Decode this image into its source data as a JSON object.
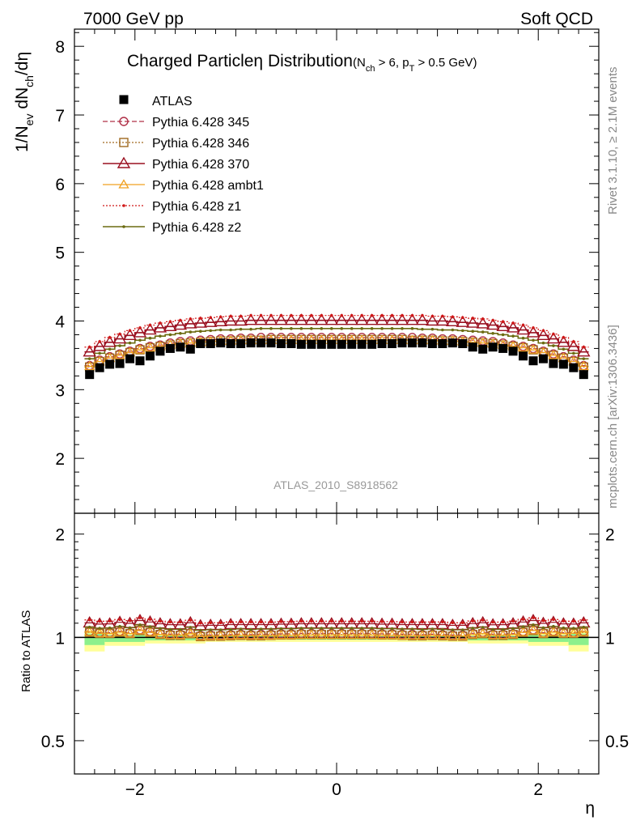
{
  "header": {
    "left": "7000 GeV pp",
    "right": "Soft QCD"
  },
  "side_labels": {
    "right_top": "Rivet 3.1.10, ≥ 2.1M events",
    "right_bottom": "mcplots.cern.ch [arXiv:1306.3436]"
  },
  "chart_data": {
    "type": "scatter",
    "title": "Charged Particle",
    "title_symbol": "η",
    "title_rest": " Distribution",
    "title_cut": "(N",
    "title_cut_sub1": "ch",
    "title_cut_mid": " > 6, p",
    "title_cut_sub2": "T",
    "title_cut_end": " > 0.5 GeV)",
    "watermark": "ATLAS_2010_S8918562",
    "xlabel": "η",
    "ylabel_main": "1/N",
    "ylabel_sub1": "ev",
    "ylabel_mid": " dN",
    "ylabel_sub2": "ch",
    "ylabel_end": "/dη",
    "ratio_ylabel": "Ratio to ATLAS",
    "xlim": [
      -2.6,
      2.6
    ],
    "ylim": [
      1.2,
      8.25
    ],
    "ratio_ylim": [
      0.4,
      2.3
    ],
    "xticks": [
      -2,
      0,
      2
    ],
    "xtick_labels": [
      "−2",
      "0",
      "2"
    ],
    "yticks": [
      2,
      3,
      4,
      5,
      6,
      7,
      8
    ],
    "ytick_labels": [
      "2",
      "3",
      "4",
      "5",
      "6",
      "7",
      "8"
    ],
    "ratio_yticks": [
      0.5,
      1,
      2
    ],
    "ratio_ytick_labels": [
      "0.5",
      "1",
      "2"
    ],
    "legend_placement": "top-left",
    "x": [
      -2.45,
      -2.35,
      -2.25,
      -2.15,
      -2.05,
      -1.95,
      -1.85,
      -1.75,
      -1.65,
      -1.55,
      -1.45,
      -1.35,
      -1.25,
      -1.15,
      -1.05,
      -0.95,
      -0.85,
      -0.75,
      -0.65,
      -0.55,
      -0.45,
      -0.35,
      -0.25,
      -0.15,
      -0.05,
      0.05,
      0.15,
      0.25,
      0.35,
      0.45,
      0.55,
      0.65,
      0.75,
      0.85,
      0.95,
      1.05,
      1.15,
      1.25,
      1.35,
      1.45,
      1.55,
      1.65,
      1.75,
      1.85,
      1.95,
      2.05,
      2.15,
      2.25,
      2.35,
      2.45
    ],
    "atlas": {
      "name": "ATLAS",
      "values": [
        3.22,
        3.32,
        3.37,
        3.38,
        3.45,
        3.42,
        3.49,
        3.56,
        3.6,
        3.62,
        3.59,
        3.67,
        3.67,
        3.68,
        3.67,
        3.67,
        3.68,
        3.68,
        3.68,
        3.67,
        3.67,
        3.66,
        3.66,
        3.66,
        3.66,
        3.66,
        3.66,
        3.66,
        3.66,
        3.67,
        3.67,
        3.68,
        3.68,
        3.68,
        3.67,
        3.67,
        3.68,
        3.67,
        3.62,
        3.59,
        3.62,
        3.6,
        3.56,
        3.49,
        3.42,
        3.45,
        3.38,
        3.37,
        3.32,
        3.22
      ]
    },
    "series": [
      {
        "name": "Pythia 6.428 345",
        "color": "#b03048",
        "values": [
          3.35,
          3.43,
          3.48,
          3.52,
          3.56,
          3.6,
          3.63,
          3.65,
          3.68,
          3.7,
          3.71,
          3.72,
          3.73,
          3.74,
          3.74,
          3.75,
          3.75,
          3.76,
          3.76,
          3.76,
          3.76,
          3.76,
          3.76,
          3.76,
          3.76,
          3.76,
          3.76,
          3.76,
          3.76,
          3.76,
          3.76,
          3.76,
          3.76,
          3.75,
          3.75,
          3.74,
          3.74,
          3.73,
          3.72,
          3.71,
          3.7,
          3.68,
          3.65,
          3.63,
          3.6,
          3.56,
          3.52,
          3.48,
          3.43,
          3.35
        ]
      },
      {
        "name": "Pythia 6.428 346",
        "color": "#a06a20",
        "values": [
          3.33,
          3.41,
          3.46,
          3.5,
          3.54,
          3.58,
          3.61,
          3.63,
          3.65,
          3.67,
          3.68,
          3.69,
          3.7,
          3.71,
          3.71,
          3.72,
          3.72,
          3.72,
          3.73,
          3.73,
          3.73,
          3.73,
          3.73,
          3.73,
          3.73,
          3.73,
          3.73,
          3.73,
          3.73,
          3.73,
          3.73,
          3.73,
          3.72,
          3.72,
          3.72,
          3.71,
          3.71,
          3.7,
          3.69,
          3.68,
          3.67,
          3.65,
          3.63,
          3.61,
          3.58,
          3.54,
          3.5,
          3.46,
          3.41,
          3.33
        ]
      },
      {
        "name": "Pythia 6.428 370",
        "color": "#9a1020",
        "values": [
          3.55,
          3.63,
          3.69,
          3.74,
          3.79,
          3.83,
          3.87,
          3.9,
          3.92,
          3.94,
          3.96,
          3.97,
          3.98,
          3.99,
          4.0,
          4.0,
          4.01,
          4.01,
          4.01,
          4.01,
          4.01,
          4.01,
          4.01,
          4.01,
          4.01,
          4.01,
          4.01,
          4.01,
          4.01,
          4.01,
          4.01,
          4.01,
          4.01,
          4.01,
          4.0,
          4.0,
          3.99,
          3.98,
          3.97,
          3.96,
          3.94,
          3.92,
          3.9,
          3.87,
          3.83,
          3.79,
          3.74,
          3.69,
          3.63,
          3.55
        ]
      },
      {
        "name": "Pythia 6.428 ambt1",
        "color": "#f0a020",
        "values": [
          3.34,
          3.41,
          3.46,
          3.5,
          3.54,
          3.58,
          3.61,
          3.63,
          3.65,
          3.67,
          3.68,
          3.69,
          3.7,
          3.71,
          3.71,
          3.72,
          3.72,
          3.72,
          3.72,
          3.72,
          3.72,
          3.72,
          3.72,
          3.72,
          3.72,
          3.72,
          3.72,
          3.72,
          3.72,
          3.72,
          3.72,
          3.72,
          3.72,
          3.72,
          3.72,
          3.71,
          3.71,
          3.7,
          3.69,
          3.68,
          3.67,
          3.65,
          3.63,
          3.61,
          3.58,
          3.54,
          3.5,
          3.46,
          3.41,
          3.34
        ]
      },
      {
        "name": "Pythia 6.428 z1",
        "color": "#d01818",
        "values": [
          3.62,
          3.7,
          3.76,
          3.81,
          3.86,
          3.9,
          3.94,
          3.97,
          3.99,
          4.01,
          4.03,
          4.04,
          4.05,
          4.06,
          4.07,
          4.07,
          4.08,
          4.08,
          4.08,
          4.08,
          4.08,
          4.08,
          4.08,
          4.08,
          4.08,
          4.08,
          4.08,
          4.08,
          4.08,
          4.08,
          4.08,
          4.08,
          4.08,
          4.08,
          4.07,
          4.07,
          4.06,
          4.05,
          4.04,
          4.03,
          4.01,
          3.99,
          3.97,
          3.94,
          3.9,
          3.86,
          3.81,
          3.76,
          3.7,
          3.62
        ]
      },
      {
        "name": "Pythia 6.428 z2",
        "color": "#6b6b10",
        "values": [
          3.45,
          3.53,
          3.59,
          3.64,
          3.68,
          3.72,
          3.75,
          3.78,
          3.8,
          3.82,
          3.84,
          3.85,
          3.86,
          3.87,
          3.87,
          3.88,
          3.88,
          3.89,
          3.89,
          3.89,
          3.89,
          3.89,
          3.89,
          3.89,
          3.89,
          3.89,
          3.89,
          3.89,
          3.89,
          3.89,
          3.89,
          3.89,
          3.89,
          3.88,
          3.88,
          3.87,
          3.87,
          3.86,
          3.85,
          3.84,
          3.82,
          3.8,
          3.78,
          3.75,
          3.72,
          3.68,
          3.64,
          3.59,
          3.53,
          3.45
        ]
      }
    ],
    "ratio_band": {
      "edges": [
        -2.5,
        -2.3,
        -1.9,
        -1.3,
        1.3,
        1.9,
        2.3,
        2.5
      ],
      "stat_sys_inner": [
        0.05,
        0.03,
        0.02,
        0.015,
        0.02,
        0.03,
        0.05
      ],
      "stat_sys_outer": [
        0.09,
        0.055,
        0.04,
        0.03,
        0.04,
        0.055,
        0.09
      ],
      "inner_color": "#8cf08c",
      "outer_color": "#ffff99"
    }
  }
}
